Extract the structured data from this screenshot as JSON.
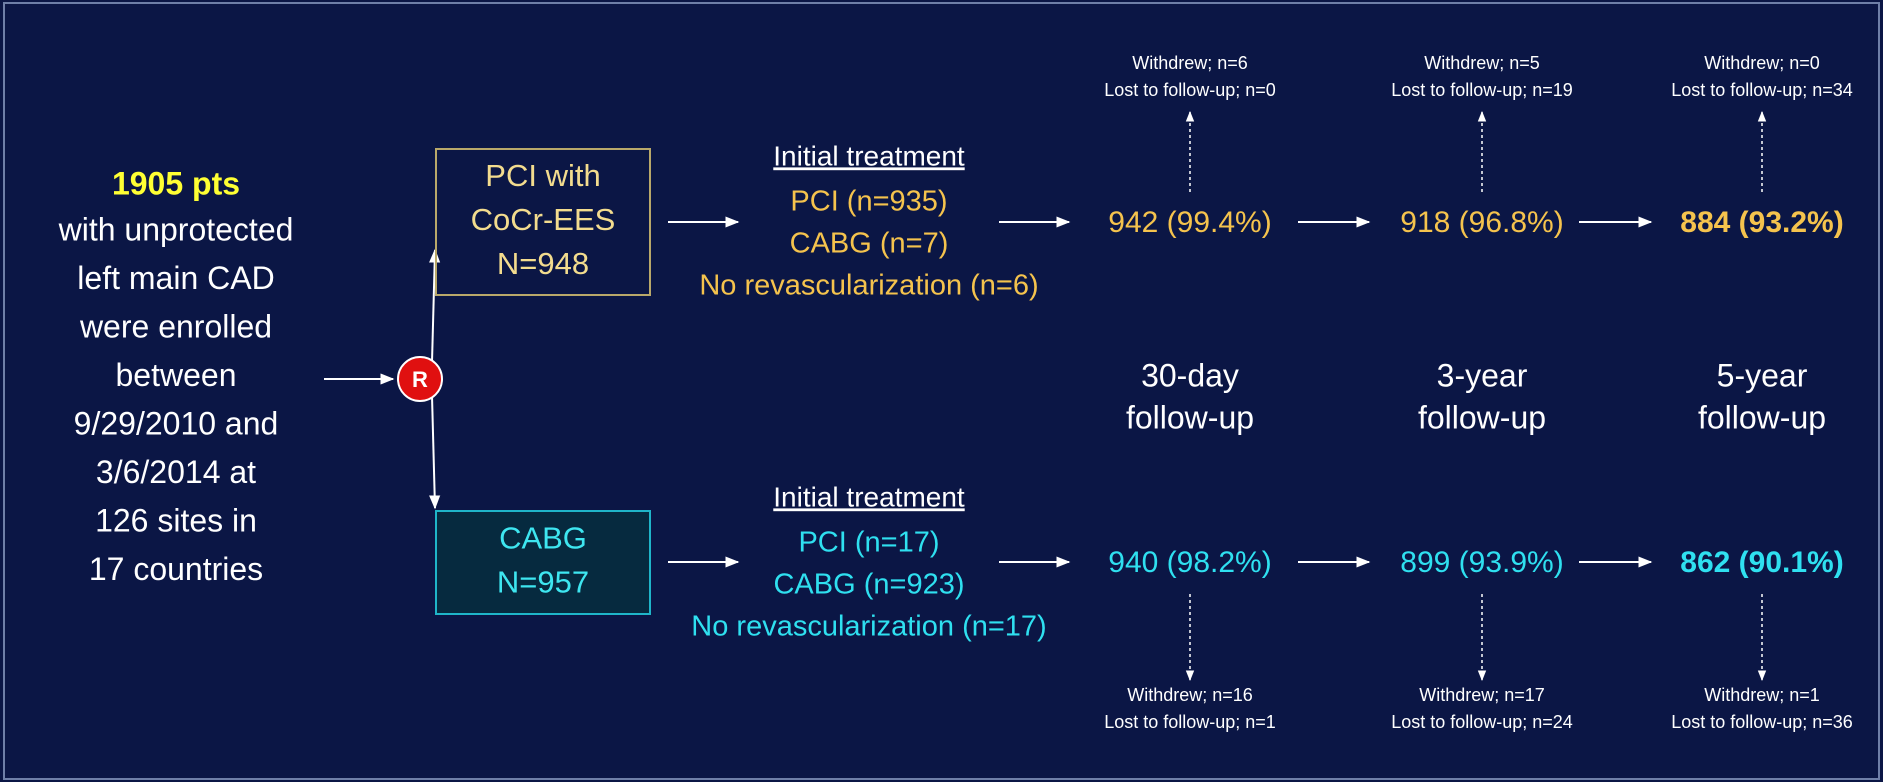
{
  "enrollment": {
    "headline": "1905 pts",
    "lines": [
      "with unprotected",
      "left main CAD",
      "were enrolled",
      "between",
      "9/29/2010 and",
      "3/6/2014 at",
      "126 sites in",
      "17 countries"
    ]
  },
  "randomization": "R",
  "arms": [
    {
      "box": [
        "PCI with",
        "CoCr-EES",
        "N=948"
      ],
      "treatment_title": "Initial treatment",
      "treatment": [
        "PCI (n=935)",
        "CABG (n=7)",
        "No revascularization (n=6)"
      ],
      "followup": [
        "942 (99.4%)",
        "918 (96.8%)",
        "884 (93.2%)"
      ],
      "dropouts": [
        [
          "Withdrew; n=6",
          "Lost to follow-up; n=0"
        ],
        [
          "Withdrew; n=5",
          "Lost to follow-up; n=19"
        ],
        [
          "Withdrew; n=0",
          "Lost to follow-up; n=34"
        ]
      ]
    },
    {
      "box": [
        "CABG",
        "N=957"
      ],
      "treatment_title": "Initial treatment",
      "treatment": [
        "PCI (n=17)",
        "CABG (n=923)",
        "No revascularization (n=17)"
      ],
      "followup": [
        "940 (98.2%)",
        "899 (93.9%)",
        "862 (90.1%)"
      ],
      "dropouts": [
        [
          "Withdrew; n=16",
          "Lost to follow-up; n=1"
        ],
        [
          "Withdrew; n=17",
          "Lost to follow-up; n=24"
        ],
        [
          "Withdrew; n=1",
          "Lost to follow-up; n=36"
        ]
      ]
    }
  ],
  "timepoints": [
    [
      "30-day",
      "follow-up"
    ],
    [
      "3-year",
      "follow-up"
    ],
    [
      "5-year",
      "follow-up"
    ]
  ]
}
